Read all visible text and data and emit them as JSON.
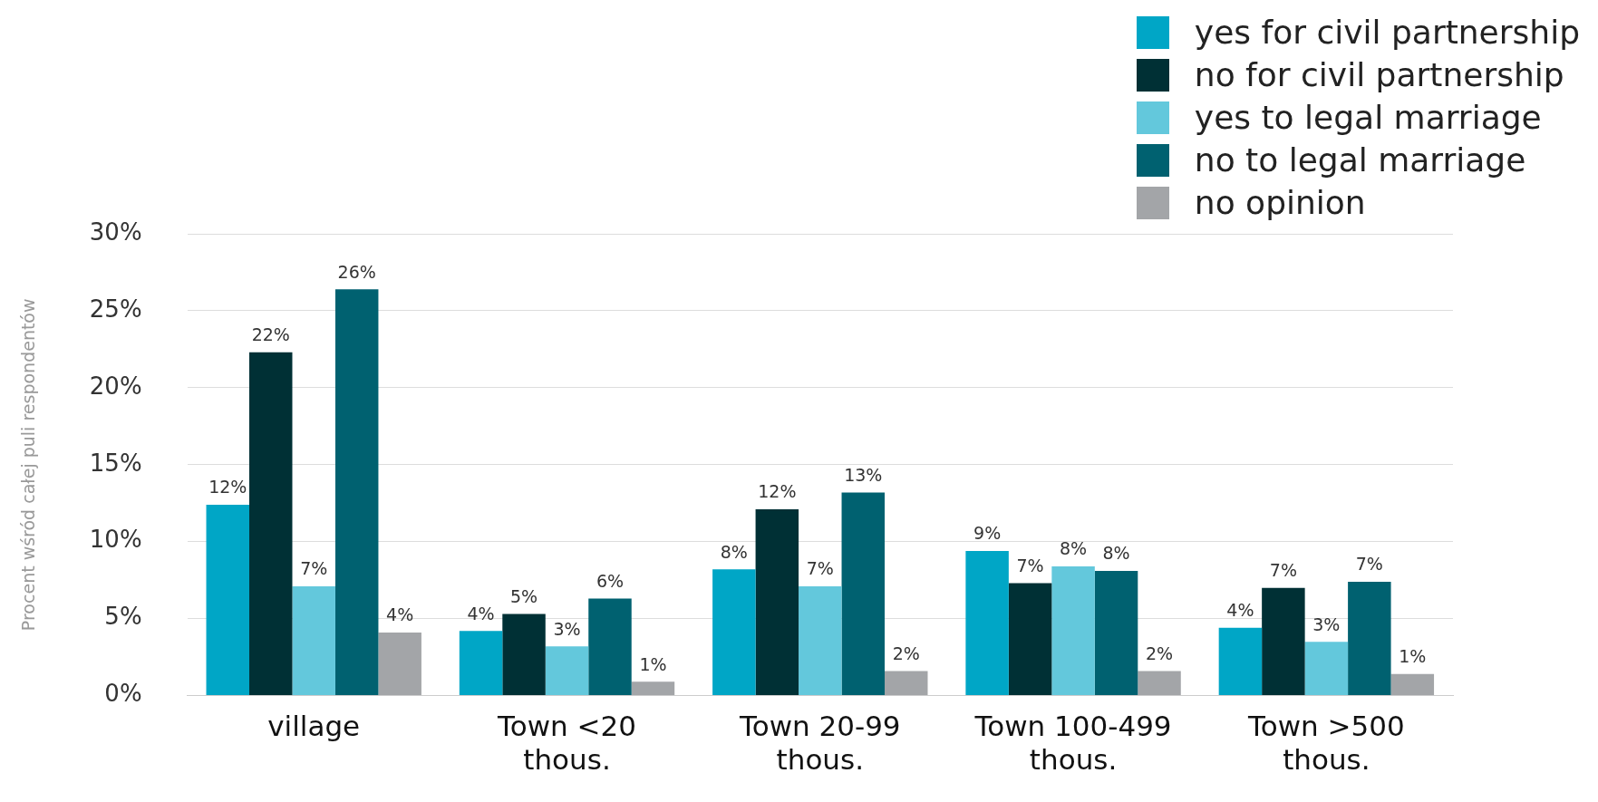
{
  "chart_data": {
    "type": "bar",
    "ylabel": "Procent wśród całej puli respondentów",
    "categories": [
      "village",
      "Town <20 thous.",
      "Town 20-99 thous.",
      "Town 100-499 thous.",
      "Town >500 thous."
    ],
    "series": [
      {
        "name": "yes for civil partnership",
        "color": "#00a6c6",
        "values": [
          12.4,
          4.2,
          8.2,
          9.4,
          4.4
        ],
        "value_labels": [
          "12%",
          "4%",
          "8%",
          "9%",
          "4%"
        ]
      },
      {
        "name": "no for civil partnership",
        "color": "#003035",
        "values": [
          22.3,
          5.3,
          12.1,
          7.3,
          7.0
        ],
        "value_labels": [
          "22%",
          "5%",
          "12%",
          "7%",
          "7%"
        ]
      },
      {
        "name": "yes to legal marriage",
        "color": "#63c8dc",
        "values": [
          7.1,
          3.2,
          7.1,
          8.4,
          3.5
        ],
        "value_labels": [
          "7%",
          "3%",
          "7%",
          "8%",
          "3%"
        ]
      },
      {
        "name": "no to legal marriage",
        "color": "#006170",
        "values": [
          26.4,
          6.3,
          13.2,
          8.1,
          7.4
        ],
        "value_labels": [
          "26%",
          "6%",
          "13%",
          "8%",
          "7%"
        ]
      },
      {
        "name": "no opinion",
        "color": "#a3a5a8",
        "values": [
          4.1,
          0.9,
          1.6,
          1.6,
          1.4
        ],
        "value_labels": [
          "4%",
          "1%",
          "2%",
          "2%",
          "1%"
        ]
      }
    ],
    "ylim": [
      0,
      30
    ],
    "yticks": [
      {
        "value": 0,
        "label": "0%"
      },
      {
        "value": 5,
        "label": "5%"
      },
      {
        "value": 10,
        "label": "10%"
      },
      {
        "value": 15,
        "label": "15%"
      },
      {
        "value": 20,
        "label": "20%"
      },
      {
        "value": 25,
        "label": "25%"
      },
      {
        "value": 30,
        "label": "30%"
      }
    ],
    "grid": "y",
    "legend": "top right"
  }
}
